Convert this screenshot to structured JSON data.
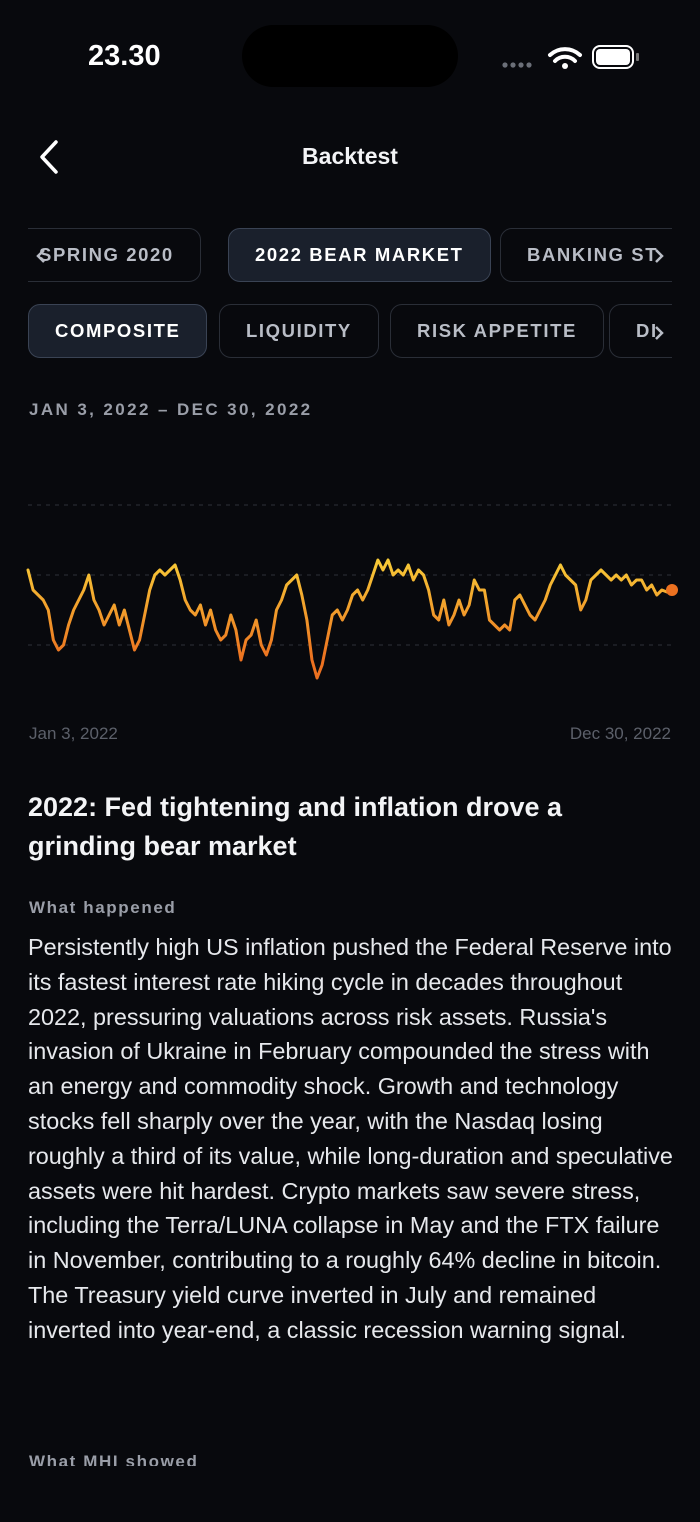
{
  "status_bar": {
    "time": "23.30"
  },
  "header": {
    "title": "Backtest"
  },
  "scenario_tabs": [
    {
      "label": "SPRING 2020",
      "selected": false
    },
    {
      "label": "2022 BEAR MARKET",
      "selected": true
    },
    {
      "label": "BANKING ST",
      "selected": false
    }
  ],
  "factor_tabs": [
    {
      "label": "COMPOSITE",
      "selected": true
    },
    {
      "label": "LIQUIDITY",
      "selected": false
    },
    {
      "label": "RISK APPETITE",
      "selected": false
    },
    {
      "label": "DI",
      "selected": false
    }
  ],
  "chart_data": {
    "type": "line",
    "subtitle": "JAN 3, 2022 – DEC 30, 2022",
    "x_labels": [
      "Jan 3, 2022",
      "Dec 30, 2022"
    ],
    "values": [
      72.5,
      62.5,
      60,
      57.5,
      52.5,
      37.5,
      32.5,
      35,
      45,
      52.5,
      57.5,
      62.5,
      70,
      57.5,
      52.5,
      45,
      50,
      55,
      45,
      52.5,
      42.5,
      32.5,
      37.5,
      50,
      62.5,
      70,
      72.5,
      70,
      72.5,
      75,
      67.5,
      57.5,
      52.5,
      50,
      55,
      45,
      52.5,
      42.5,
      37.5,
      40,
      50,
      42.5,
      27.5,
      37.5,
      40,
      47.5,
      35,
      30,
      37.5,
      52.5,
      57.5,
      65,
      67.5,
      70,
      60,
      47.5,
      27.5,
      18.5,
      25,
      37.5,
      50,
      52.5,
      47.5,
      52.5,
      60,
      62.5,
      57.5,
      62.5,
      70,
      77.5,
      72.5,
      77.5,
      70,
      72.5,
      70,
      75,
      67.5,
      72.5,
      70,
      62.5,
      50,
      47.5,
      57.5,
      45,
      50,
      57.5,
      50,
      55,
      67.5,
      62.5,
      62.5,
      47.5,
      45,
      42.5,
      45,
      42.5,
      57.5,
      60,
      55,
      50,
      47.5,
      52.5,
      57.5,
      65,
      70,
      75,
      70,
      67.5,
      65,
      52.5,
      57.5,
      67.5,
      70,
      72.5,
      70,
      67.5,
      70,
      67.5,
      70,
      65,
      67.5,
      67.5,
      62.5,
      65,
      60,
      62.5,
      61.5,
      62.5
    ],
    "ylim": [
      0,
      140
    ],
    "yticks": [
      35,
      70,
      105
    ],
    "grid": true,
    "colors": {
      "low": "#ec7120",
      "high": "#f7ca37"
    }
  },
  "article": {
    "title": "2022: Fed tightening and inflation drove a grinding bear market",
    "sections": [
      {
        "heading": "What happened",
        "body": "Persistently high US inflation pushed the Federal Reserve into its fastest interest rate hiking cycle in decades throughout 2022, pressuring valuations across risk assets. Russia's invasion of Ukraine in February compounded the stress with an energy and commodity shock. Growth and technology stocks fell sharply over the year, with the Nasdaq losing roughly a third of its value, while long-duration and speculative assets were hit hardest. Crypto markets saw severe stress, including the Terra/LUNA collapse in May and the FTX failure in November, contributing to a roughly 64% decline in bitcoin. The Treasury yield curve inverted in July and remained inverted into year-end, a classic recession warning signal."
      },
      {
        "heading": "What MHI showed"
      }
    ]
  }
}
